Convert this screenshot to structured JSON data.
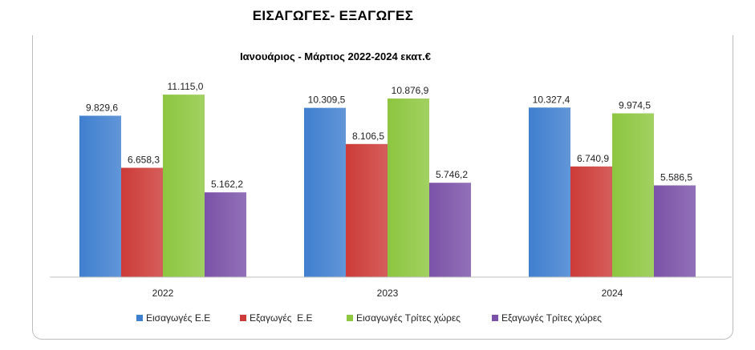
{
  "page_title": "ΕΙΣΑΓΩΓΕΣ- ΕΞΑΓΩΓΕΣ",
  "chart_data": {
    "type": "bar",
    "title": "Ιανουάριος - Μάρτιος 2022-2024 εκατ.€",
    "categories": [
      "2022",
      "2023",
      "2024"
    ],
    "series": [
      {
        "name": "Εισαγωγές Ε.Ε",
        "values": [
          9829.6,
          10309.5,
          10327.4
        ],
        "labels": [
          "9.829,6",
          "10.309,5",
          "10.327,4"
        ],
        "color": "#3f7fcf"
      },
      {
        "name": "Εξαγωγές  Ε.Ε",
        "values": [
          6658.3,
          8106.5,
          6740.9
        ],
        "labels": [
          "6.658,3",
          "8.106,5",
          "6.740,9"
        ],
        "color": "#cc3b37"
      },
      {
        "name": "Εισαγωγές Τρίτες χώρες",
        "values": [
          11115.0,
          10876.9,
          9974.5
        ],
        "labels": [
          "11.115,0",
          "10.876,9",
          "9.974,5"
        ],
        "color": "#8dc63f"
      },
      {
        "name": "Εξαγωγές Τρίτες χώρες",
        "values": [
          5162.2,
          5746.2,
          5586.5
        ],
        "labels": [
          "5.162,2",
          "5.746,2",
          "5.586,5"
        ],
        "color": "#7b52a8"
      }
    ],
    "ylim": [
      0,
      12000
    ],
    "grid": false,
    "legend_position": "bottom"
  }
}
